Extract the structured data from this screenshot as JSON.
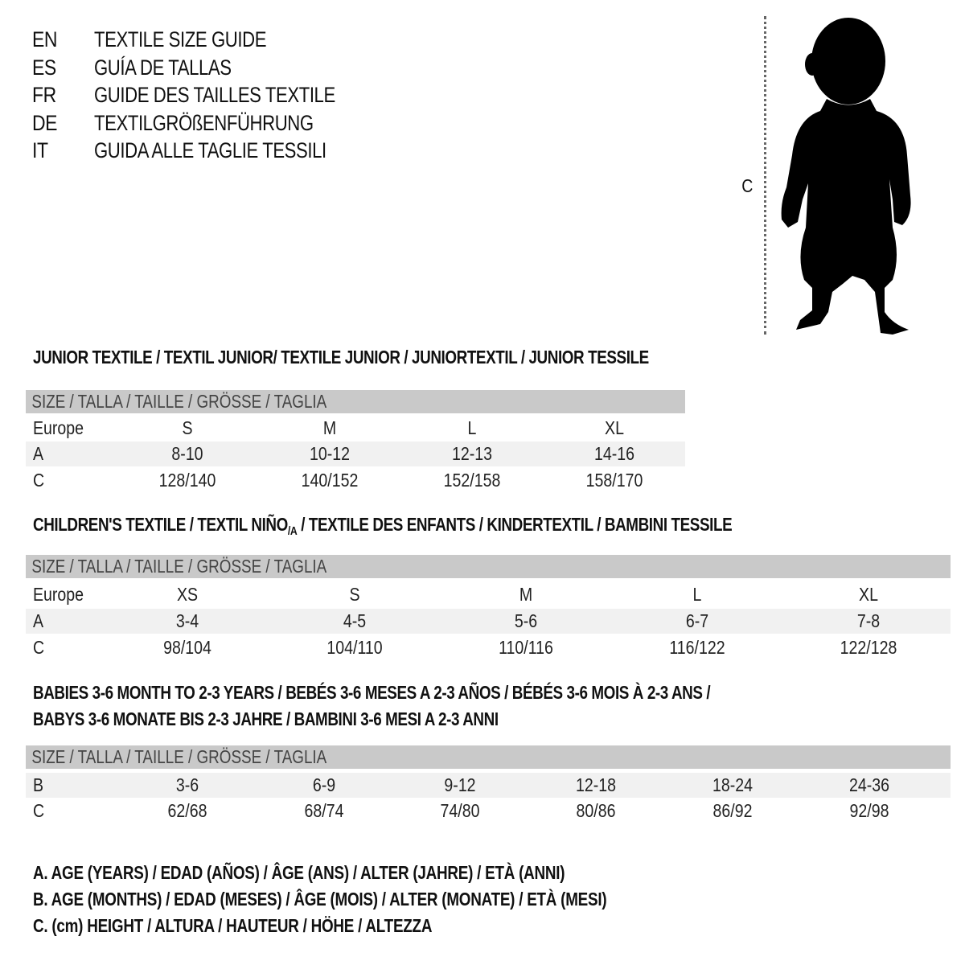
{
  "languages": [
    {
      "code": "EN",
      "text": "TEXTILE SIZE GUIDE"
    },
    {
      "code": "ES",
      "text": "GUÍA DE TALLAS"
    },
    {
      "code": "FR",
      "text": "GUIDE DES TAILLES TEXTILE"
    },
    {
      "code": "DE",
      "text": "TEXTILGRÖßENFÜHRUNG"
    },
    {
      "code": "IT",
      "text": "GUIDA ALLE TAGLIE TESSILI"
    }
  ],
  "figure": {
    "measure_label": "C",
    "icon": "child-silhouette-icon"
  },
  "colors": {
    "header_bg": "#c9c9c9",
    "alt_row_bg": "#f1f1f1"
  },
  "junior": {
    "title": "JUNIOR TEXTILE / TEXTIL JUNIOR/ TEXTILE JUNIOR / JUNIORTEXTIL / JUNIOR TESSILE",
    "header": "SIZE / TALLA / TAILLE / GRÖSSE / TAGLIA",
    "rows": [
      {
        "label": "Europe",
        "values": [
          "S",
          "M",
          "L",
          "XL"
        ]
      },
      {
        "label": "A",
        "values": [
          "8-10",
          "10-12",
          "12-13",
          "14-16"
        ]
      },
      {
        "label": "C",
        "values": [
          "128/140",
          "140/152",
          "152/158",
          "158/170"
        ]
      }
    ]
  },
  "children": {
    "title": "CHILDREN'S TEXTILE / TEXTIL NIÑO",
    "title_sub": "/A",
    "title_rest": " / TEXTILE DES ENFANTS / KINDERTEXTIL / BAMBINI TESSILE",
    "header": "SIZE / TALLA / TAILLE / GRÖSSE / TAGLIA",
    "rows": [
      {
        "label": "Europe",
        "values": [
          "XS",
          "S",
          "M",
          "L",
          "XL"
        ]
      },
      {
        "label": "A",
        "values": [
          "3-4",
          "4-5",
          "5-6",
          "6-7",
          "7-8"
        ]
      },
      {
        "label": "C",
        "values": [
          "98/104",
          "104/110",
          "110/116",
          "116/122",
          "122/128"
        ]
      }
    ]
  },
  "babies": {
    "title_line1": "BABIES 3-6 MONTH TO 2-3 YEARS / BEBÉS 3-6 MESES A 2-3 AÑOS / BÉBÉS 3-6 MOIS À 2-3 ANS /",
    "title_line2": "BABYS 3-6 MONATE BIS 2-3 JAHRE / BAMBINI 3-6 MESI A 2-3 ANNI",
    "header": "SIZE / TALLA / TAILLE / GRÖSSE / TAGLIA",
    "rows": [
      {
        "label": "B",
        "values": [
          "3-6",
          "6-9",
          "9-12",
          "12-18",
          "18-24",
          "24-36"
        ]
      },
      {
        "label": "C",
        "values": [
          "62/68",
          "68/74",
          "74/80",
          "80/86",
          "86/92",
          "92/98"
        ]
      }
    ]
  },
  "legend": [
    "A. AGE (YEARS) / EDAD (AÑOS) / ÂGE (ANS) / ALTER (JAHRE) / ETÀ (ANNI)",
    "B. AGE (MONTHS) / EDAD (MESES) / ÂGE (MOIS) / ALTER (MONATE) / ETÀ (MESI)",
    "C. (cm) HEIGHT / ALTURA / HAUTEUR / HÖHE / ALTEZZA"
  ]
}
